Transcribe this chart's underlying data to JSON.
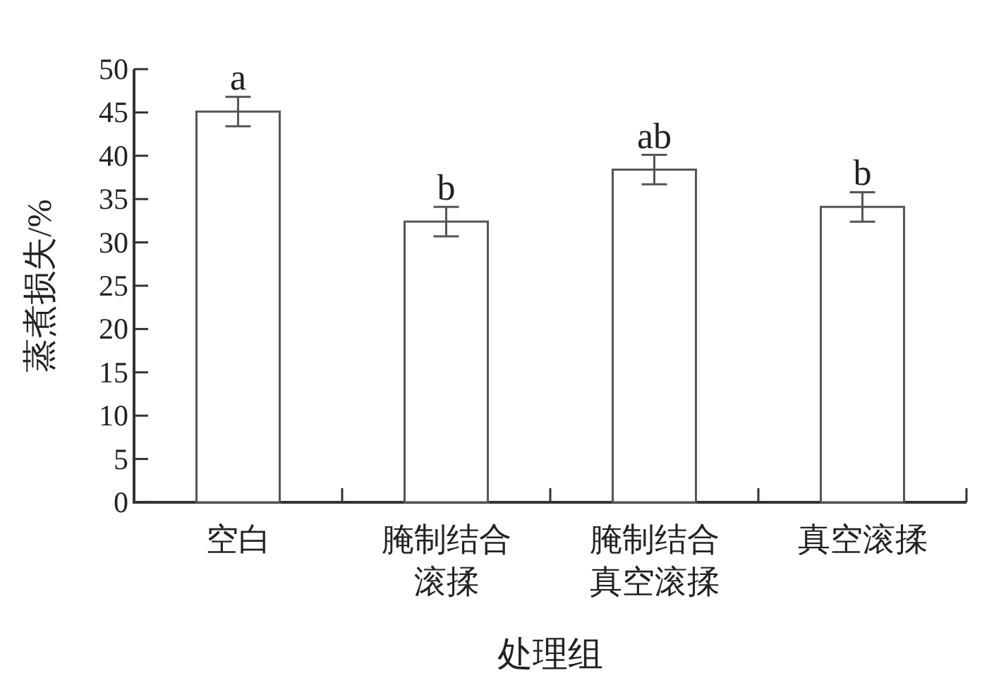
{
  "chart_data": {
    "type": "bar",
    "xlabel": "处理组",
    "ylabel": "蒸煮损失/%",
    "categories": [
      "空白",
      "腌制结合滚揉",
      "腌制结合真空滚揉",
      "真空滚揉"
    ],
    "values": [
      45.1,
      32.4,
      38.4,
      34.1
    ],
    "errors": [
      1.7,
      1.7,
      1.7,
      1.7
    ],
    "color": "#ffffff",
    "ylim": [
      0,
      50
    ],
    "yticks": [
      0,
      5,
      10,
      15,
      20,
      25,
      30,
      35,
      40,
      45,
      50
    ],
    "grid": false,
    "annotations": [
      {
        "text": "a",
        "x": "空白",
        "y": 46.8
      },
      {
        "text": "b",
        "x": "腌制结合滚揉",
        "y": 34.1
      },
      {
        "text": "ab",
        "x": "腌制结合真空滚揉",
        "y": 40.1
      },
      {
        "text": "b",
        "x": "真空滚揉",
        "y": 35.8
      }
    ]
  }
}
